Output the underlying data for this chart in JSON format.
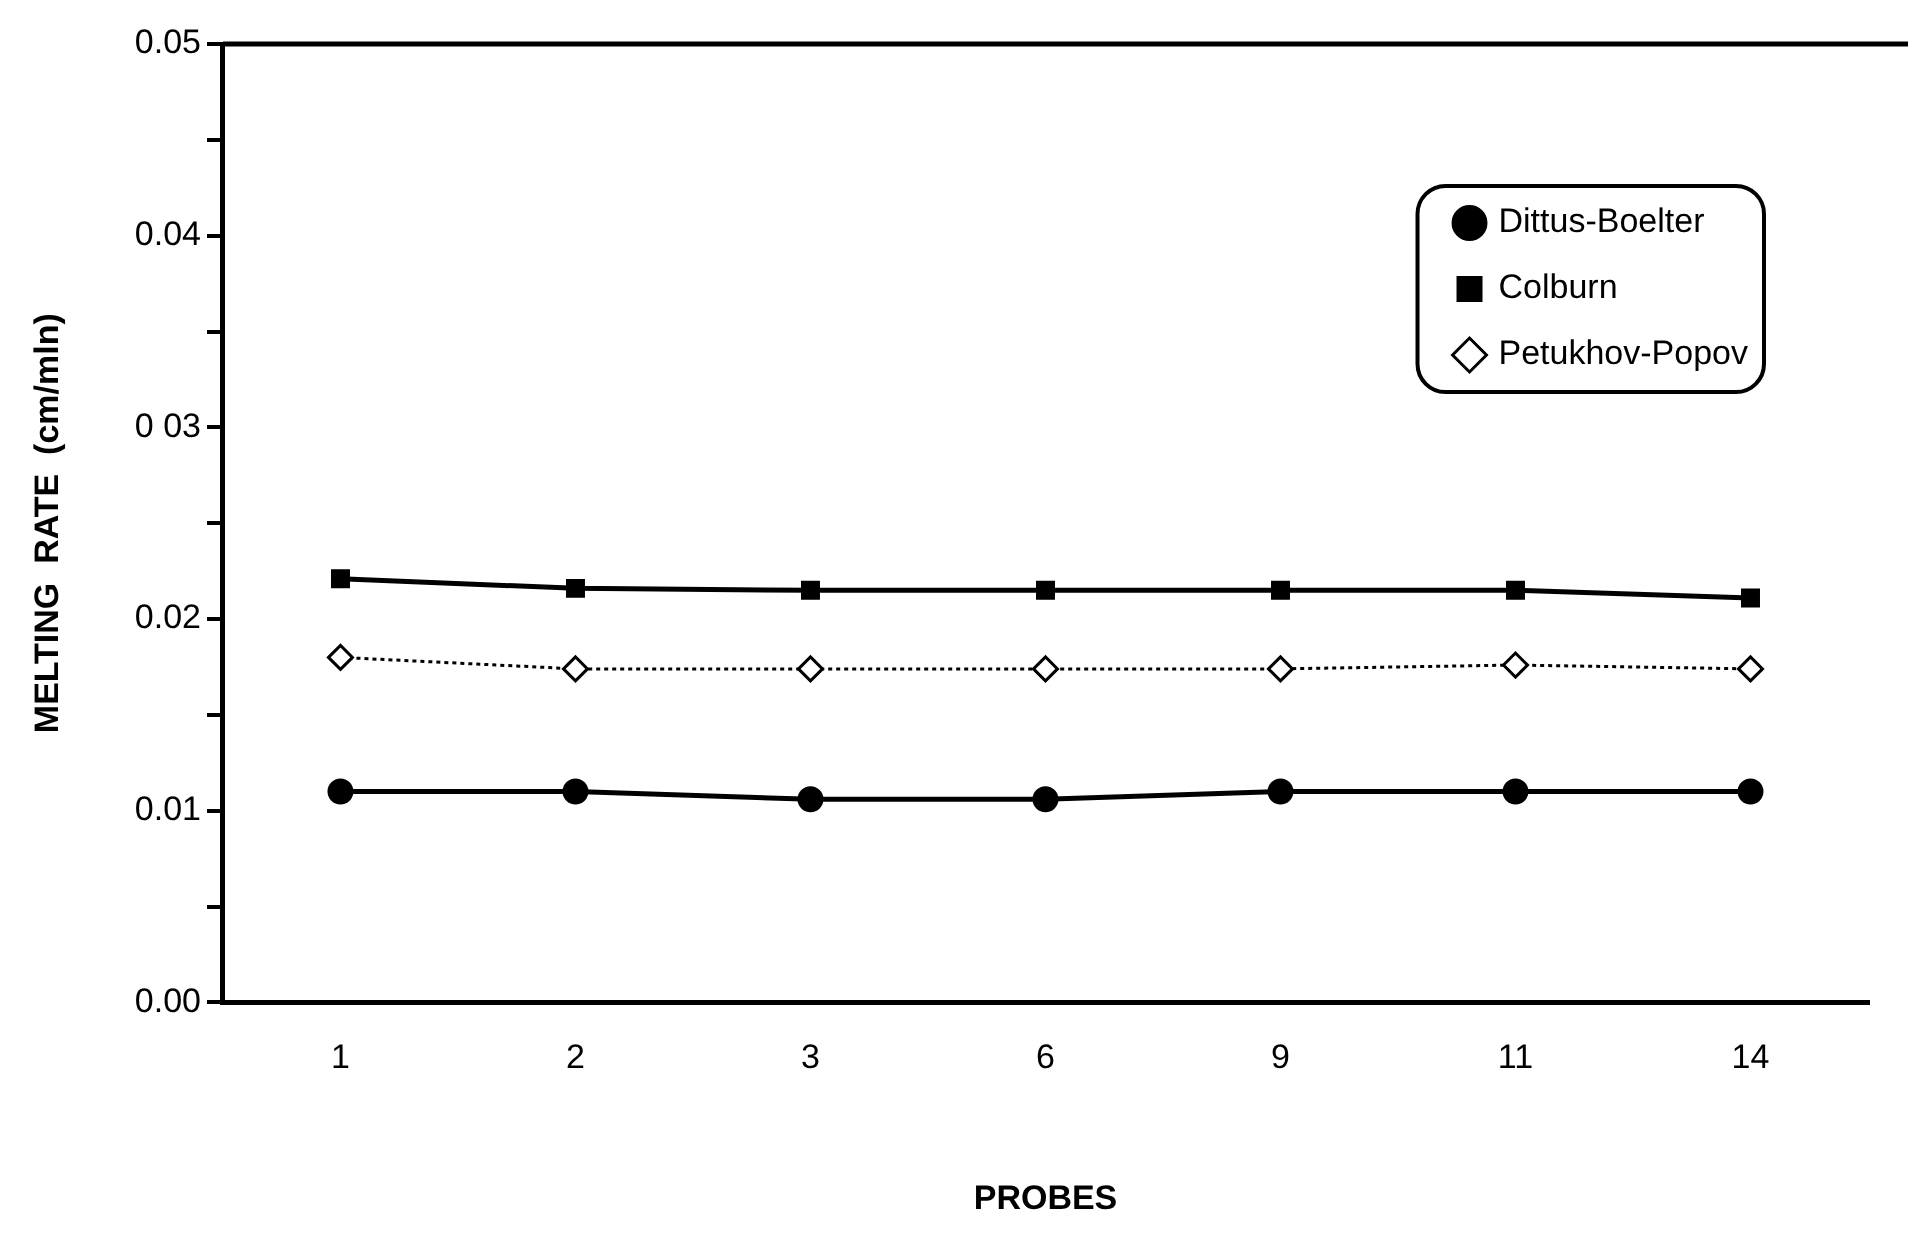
{
  "chart_data": {
    "type": "line",
    "xlabel": "PROBES",
    "ylabel": "MELTING  RATE  (cm/mln)",
    "categories": [
      "1",
      "2",
      "3",
      "6",
      "9",
      "11",
      "14"
    ],
    "series": [
      {
        "name": "Dittus-Boelter",
        "color": "#000000",
        "marker": "circle",
        "line_style": "solid",
        "values": [
          0.011,
          0.011,
          0.0106,
          0.0106,
          0.011,
          0.011,
          0.011
        ]
      },
      {
        "name": "Colburn",
        "color": "#000000",
        "marker": "square",
        "line_style": "solid",
        "values": [
          0.0221,
          0.0216,
          0.0215,
          0.0215,
          0.0215,
          0.0215,
          0.0211
        ]
      },
      {
        "name": "Petukhov-Popov",
        "color": "#000000",
        "marker": "diamond",
        "line_style": "dotted",
        "values": [
          0.018,
          0.0174,
          0.0174,
          0.0174,
          0.0174,
          0.0176,
          0.0174
        ]
      }
    ],
    "ylim": [
      0,
      0.05
    ],
    "yticks": [
      {
        "value": 0,
        "label": "0.00"
      },
      {
        "value": 0.005,
        "label": null
      },
      {
        "value": 0.01,
        "label": "0.01"
      },
      {
        "value": 0.015,
        "label": null
      },
      {
        "value": 0.02,
        "label": "0.02"
      },
      {
        "value": 0.025,
        "label": null
      },
      {
        "value": 0.03,
        "label": "0 03"
      },
      {
        "value": 0.035,
        "label": null
      },
      {
        "value": 0.04,
        "label": "0.04"
      },
      {
        "value": 0.045,
        "label": null
      },
      {
        "value": 0.05,
        "label": "0.05"
      }
    ],
    "grid": false,
    "legend": "top right"
  }
}
